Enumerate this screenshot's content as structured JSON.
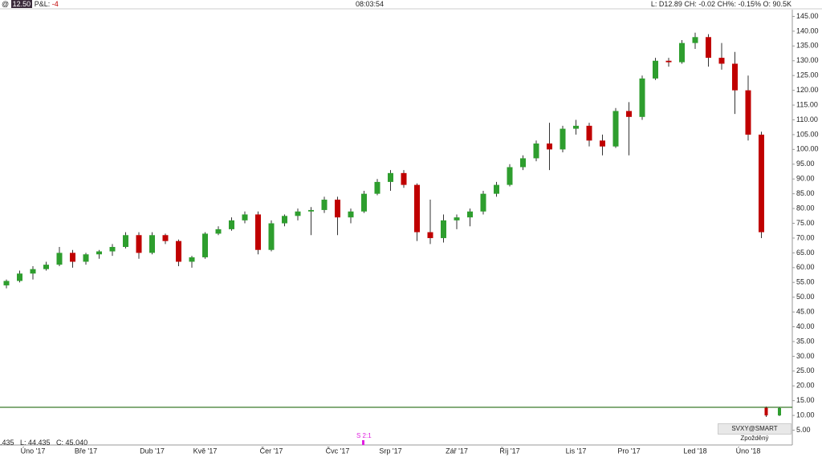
{
  "header": {
    "at": "@",
    "price": "12.50",
    "pnl_label": "P&L:",
    "pnl": "-4",
    "time": "08:03:54",
    "status": "L: D12.89 CH: -0.02 CH%: -0.15% O: 90.5K"
  },
  "footer": {
    "ohlc": ".435   L: 44.435   C: 45.040"
  },
  "annotations": {
    "split": "S 2:1"
  },
  "chart_data": {
    "type": "candlestick",
    "categories": [
      null,
      null,
      "Úno '17",
      null,
      null,
      null,
      "Bře '17",
      null,
      null,
      null,
      null,
      "Dub '17",
      null,
      null,
      null,
      "Kvě '17",
      null,
      null,
      null,
      null,
      "Čer '17",
      null,
      null,
      null,
      null,
      "Čvc '17",
      null,
      null,
      null,
      "Srp '17",
      null,
      null,
      null,
      null,
      "Zář '17",
      null,
      null,
      null,
      "Říj '17",
      null,
      null,
      null,
      null,
      "Lis '17",
      null,
      null,
      null,
      "Pro '17",
      null,
      null,
      null,
      null,
      "Led '18",
      null,
      null,
      null,
      "Úno '18",
      null,
      null
    ],
    "series": [
      {
        "up_color": "#2e9e2e",
        "down_color": "#c00000",
        "open": [
          54,
          55.5,
          58,
          59.5,
          61,
          65,
          62,
          64.5,
          65.5,
          67,
          71,
          65,
          71,
          69,
          62,
          63.5,
          71.5,
          73,
          76,
          78,
          66,
          75,
          77.5,
          79,
          79.5,
          83,
          77,
          79,
          85,
          89,
          92,
          88,
          72,
          70,
          76,
          77,
          79,
          85,
          88,
          94,
          97,
          102,
          100,
          107,
          108,
          103,
          101,
          113,
          111,
          124,
          130,
          129.5,
          136,
          138,
          131,
          129,
          120,
          105,
          null
        ],
        "high": [
          56,
          59,
          60.5,
          62,
          67,
          66,
          65,
          66,
          68,
          72,
          72,
          72,
          71.5,
          69.5,
          64,
          72,
          74,
          77,
          79,
          79,
          76,
          78,
          80,
          80.5,
          84,
          84,
          80,
          86,
          90,
          93,
          93,
          88.5,
          83,
          78,
          78,
          80,
          86,
          89,
          95,
          98,
          103,
          109,
          108,
          110,
          109,
          105,
          114,
          116,
          125,
          131,
          131,
          137,
          139.5,
          139,
          136,
          133,
          125,
          106,
          null
        ],
        "low": [
          53,
          55,
          56,
          59,
          60.5,
          60,
          61,
          63,
          64,
          66.5,
          63,
          64.5,
          68,
          60.5,
          60,
          63,
          71,
          72.5,
          75,
          64.5,
          65.5,
          74,
          76,
          71,
          78.5,
          71,
          75,
          78.5,
          84.5,
          86,
          87,
          69,
          68,
          68.5,
          73,
          74,
          78,
          84,
          87.5,
          93,
          96,
          93,
          99,
          105,
          101,
          98,
          100.5,
          98,
          110,
          123.5,
          128,
          129,
          134,
          128,
          127,
          112,
          103,
          70,
          null
        ],
        "close": [
          55.5,
          58,
          59.5,
          61,
          65,
          62,
          64.5,
          65.5,
          67,
          71,
          65,
          71,
          69,
          62,
          63.5,
          71.5,
          73,
          76,
          78,
          66,
          75,
          77.5,
          79,
          79.5,
          83,
          77,
          79,
          85,
          89,
          92,
          88,
          72,
          70,
          76,
          77,
          79,
          85,
          88,
          94,
          97,
          102,
          100,
          107,
          108,
          103,
          101,
          113,
          111,
          124,
          130,
          129.5,
          136,
          138,
          131,
          129,
          120,
          105,
          72,
          null
        ]
      },
      {
        "name": "SVXY@SMART Zpožděný",
        "up_color": "#2e9e2e",
        "down_color": "#c00000",
        "open": [
          null,
          null,
          null,
          null,
          null,
          null,
          null,
          null,
          null,
          null,
          null,
          null,
          null,
          null,
          null,
          null,
          null,
          null,
          null,
          null,
          null,
          null,
          null,
          null,
          null,
          null,
          null,
          null,
          null,
          null,
          null,
          null,
          null,
          null,
          null,
          null,
          null,
          null,
          null,
          null,
          null,
          null,
          null,
          null,
          null,
          null,
          null,
          null,
          null,
          null,
          null,
          null,
          null,
          null,
          null,
          null,
          null,
          12.6,
          10
        ],
        "high": [
          null,
          null,
          null,
          null,
          null,
          null,
          null,
          null,
          null,
          null,
          null,
          null,
          null,
          null,
          null,
          null,
          null,
          null,
          null,
          null,
          null,
          null,
          null,
          null,
          null,
          null,
          null,
          null,
          null,
          null,
          null,
          null,
          null,
          null,
          null,
          null,
          null,
          null,
          null,
          null,
          null,
          null,
          null,
          null,
          null,
          null,
          null,
          null,
          null,
          null,
          null,
          null,
          null,
          null,
          null,
          null,
          null,
          13,
          12.8
        ],
        "low": [
          null,
          null,
          null,
          null,
          null,
          null,
          null,
          null,
          null,
          null,
          null,
          null,
          null,
          null,
          null,
          null,
          null,
          null,
          null,
          null,
          null,
          null,
          null,
          null,
          null,
          null,
          null,
          null,
          null,
          null,
          null,
          null,
          null,
          null,
          null,
          null,
          null,
          null,
          null,
          null,
          null,
          null,
          null,
          null,
          null,
          null,
          null,
          null,
          null,
          null,
          null,
          null,
          null,
          null,
          null,
          null,
          null,
          9.5,
          9.8
        ],
        "close": [
          null,
          null,
          null,
          null,
          null,
          null,
          null,
          null,
          null,
          null,
          null,
          null,
          null,
          null,
          null,
          null,
          null,
          null,
          null,
          null,
          null,
          null,
          null,
          null,
          null,
          null,
          null,
          null,
          null,
          null,
          null,
          null,
          null,
          null,
          null,
          null,
          null,
          null,
          null,
          null,
          null,
          null,
          null,
          null,
          null,
          null,
          null,
          null,
          null,
          null,
          null,
          null,
          null,
          null,
          null,
          null,
          null,
          10,
          12.5
        ]
      }
    ],
    "price_line": {
      "value": 12.75,
      "color": "#3a7a2a"
    },
    "ylim": [
      0,
      147.3
    ],
    "yticks": [
      {
        "value": 5,
        "label": "5.00"
      },
      {
        "value": 10,
        "label": "10.00"
      },
      {
        "value": 15,
        "label": "15.00"
      },
      {
        "value": 20,
        "label": "20.00"
      },
      {
        "value": 25,
        "label": "25.00"
      },
      {
        "value": 30,
        "label": "30.00"
      },
      {
        "value": 35,
        "label": "35.00"
      },
      {
        "value": 40,
        "label": "40.00"
      },
      {
        "value": 45,
        "label": "45.00"
      },
      {
        "value": 50,
        "label": "50.00"
      },
      {
        "value": 55,
        "label": "55.00"
      },
      {
        "value": 60,
        "label": "60.00"
      },
      {
        "value": 65,
        "label": "65.00"
      },
      {
        "value": 70,
        "label": "70.00"
      },
      {
        "value": 75,
        "label": "75.00"
      },
      {
        "value": 80,
        "label": "80.00"
      },
      {
        "value": 85,
        "label": "85.00"
      },
      {
        "value": 90,
        "label": "90.00"
      },
      {
        "value": 95,
        "label": "95.00"
      },
      {
        "value": 100,
        "label": "100.00"
      },
      {
        "value": 105,
        "label": "105.00"
      },
      {
        "value": 110,
        "label": "110.00"
      },
      {
        "value": 115,
        "label": "115.00"
      },
      {
        "value": 120,
        "label": "120.00"
      },
      {
        "value": 125,
        "label": "125.00"
      },
      {
        "value": 130,
        "label": "130.00"
      },
      {
        "value": 135,
        "label": "135.00"
      },
      {
        "value": 140,
        "label": "140.00"
      },
      {
        "value": 145,
        "label": "145.00"
      }
    ]
  }
}
